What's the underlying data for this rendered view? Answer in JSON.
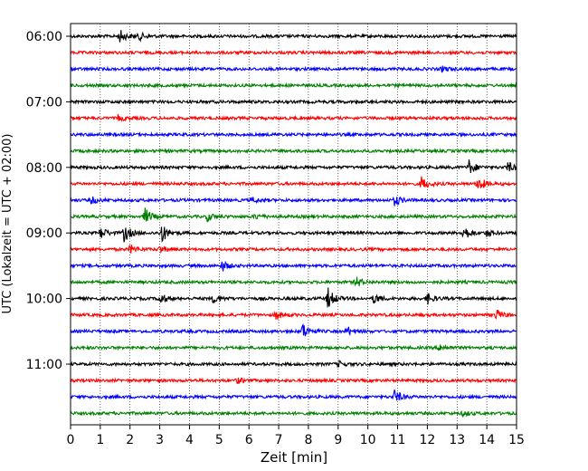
{
  "chart_data": {
    "type": "line",
    "title": "",
    "xlabel": "Zeit  [min]",
    "ylabel": "UTC (Lokalzeit = UTC + 02:00)",
    "xlim": [
      0,
      15
    ],
    "x_ticks": [
      "0",
      "1",
      "2",
      "3",
      "4",
      "5",
      "6",
      "7",
      "8",
      "9",
      "10",
      "11",
      "12",
      "13",
      "14",
      "15"
    ],
    "y_ticks": [
      "06:00",
      "07:00",
      "08:00",
      "09:00",
      "10:00",
      "11:00"
    ],
    "trace_interval_minutes": 15,
    "grid": "vertical dotted at each minute",
    "series_colors": [
      "#000000",
      "#ff0000",
      "#0000ff",
      "#008000"
    ],
    "traces": [
      {
        "start": "06:00",
        "color": "#000000",
        "events": [
          {
            "t": 1.65,
            "amp": 7
          },
          {
            "t": 2.3,
            "amp": 4
          }
        ]
      },
      {
        "start": "06:15",
        "color": "#ff0000",
        "events": []
      },
      {
        "start": "06:30",
        "color": "#0000ff",
        "events": [
          {
            "t": 12.5,
            "amp": 3
          }
        ]
      },
      {
        "start": "06:45",
        "color": "#008000",
        "events": []
      },
      {
        "start": "07:00",
        "color": "#000000",
        "events": []
      },
      {
        "start": "07:15",
        "color": "#ff0000",
        "events": [
          {
            "t": 1.6,
            "amp": 3
          }
        ]
      },
      {
        "start": "07:30",
        "color": "#0000ff",
        "events": []
      },
      {
        "start": "07:45",
        "color": "#008000",
        "events": []
      },
      {
        "start": "08:00",
        "color": "#000000",
        "events": [
          {
            "t": 13.4,
            "amp": 8
          },
          {
            "t": 14.7,
            "amp": 6
          }
        ]
      },
      {
        "start": "08:15",
        "color": "#ff0000",
        "events": [
          {
            "t": 11.8,
            "amp": 8
          },
          {
            "t": 13.7,
            "amp": 9
          }
        ]
      },
      {
        "start": "08:30",
        "color": "#0000ff",
        "events": [
          {
            "t": 0.7,
            "amp": 4
          },
          {
            "t": 6.1,
            "amp": 3
          },
          {
            "t": 10.9,
            "amp": 6
          }
        ]
      },
      {
        "start": "08:45",
        "color": "#008000",
        "events": [
          {
            "t": 2.5,
            "amp": 9
          },
          {
            "t": 4.6,
            "amp": 5
          },
          {
            "t": 6.2,
            "amp": 3
          }
        ]
      },
      {
        "start": "09:00",
        "color": "#000000",
        "events": [
          {
            "t": 1.0,
            "amp": 7
          },
          {
            "t": 1.8,
            "amp": 10
          },
          {
            "t": 3.05,
            "amp": 11
          },
          {
            "t": 13.2,
            "amp": 9
          },
          {
            "t": 14.0,
            "amp": 4
          }
        ]
      },
      {
        "start": "09:15",
        "color": "#ff0000",
        "events": [
          {
            "t": 2.0,
            "amp": 5
          },
          {
            "t": 3.0,
            "amp": 4
          }
        ]
      },
      {
        "start": "09:30",
        "color": "#0000ff",
        "events": [
          {
            "t": 5.1,
            "amp": 6
          }
        ]
      },
      {
        "start": "09:45",
        "color": "#008000",
        "events": [
          {
            "t": 9.6,
            "amp": 6
          }
        ]
      },
      {
        "start": "10:00",
        "color": "#000000",
        "events": [
          {
            "t": 3.0,
            "amp": 6
          },
          {
            "t": 4.8,
            "amp": 5
          },
          {
            "t": 8.65,
            "amp": 12
          },
          {
            "t": 10.2,
            "amp": 6
          },
          {
            "t": 12.0,
            "amp": 6
          }
        ]
      },
      {
        "start": "10:15",
        "color": "#ff0000",
        "events": [
          {
            "t": 6.9,
            "amp": 5
          },
          {
            "t": 14.3,
            "amp": 6
          }
        ]
      },
      {
        "start": "10:30",
        "color": "#0000ff",
        "events": [
          {
            "t": 7.8,
            "amp": 9
          },
          {
            "t": 9.3,
            "amp": 5
          }
        ]
      },
      {
        "start": "10:45",
        "color": "#008000",
        "events": [
          {
            "t": 12.4,
            "amp": 4
          }
        ]
      },
      {
        "start": "11:00",
        "color": "#000000",
        "events": [
          {
            "t": 9.0,
            "amp": 3
          }
        ]
      },
      {
        "start": "11:15",
        "color": "#ff0000",
        "events": [
          {
            "t": 5.6,
            "amp": 3
          }
        ]
      },
      {
        "start": "11:30",
        "color": "#0000ff",
        "events": [
          {
            "t": 10.9,
            "amp": 8
          }
        ]
      },
      {
        "start": "11:45",
        "color": "#008000",
        "events": [
          {
            "t": 13.2,
            "amp": 3
          }
        ]
      }
    ]
  }
}
